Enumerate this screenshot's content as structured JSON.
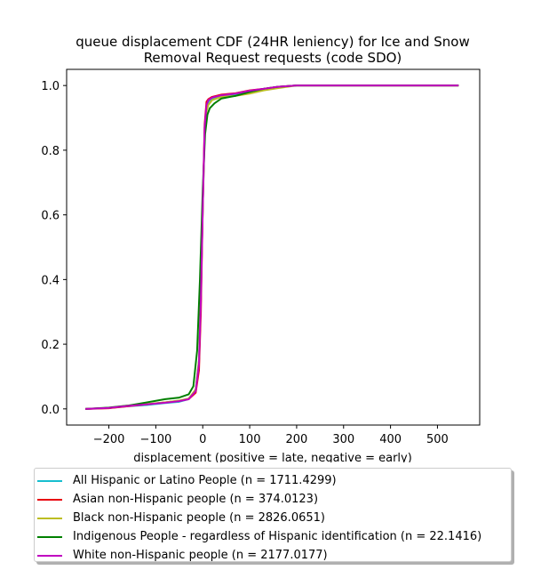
{
  "chart_data": {
    "type": "line",
    "title_lines": [
      "queue displacement CDF (24HR leniency) for Ice and Snow",
      "Removal Request  requests (code SDO)"
    ],
    "xlabel": "displacement (positive = late, negative = early)",
    "ylabel": "",
    "xlim": [
      -290,
      590
    ],
    "ylim": [
      -0.05,
      1.05
    ],
    "xticks": [
      -200,
      -100,
      0,
      100,
      200,
      300,
      400,
      500
    ],
    "xtick_labels": [
      "−200",
      "−100",
      "0",
      "100",
      "200",
      "300",
      "400",
      "500"
    ],
    "yticks": [
      0.0,
      0.2,
      0.4,
      0.6,
      0.8,
      1.0
    ],
    "ytick_labels": [
      "0.0",
      "0.2",
      "0.4",
      "0.6",
      "0.8",
      "1.0"
    ],
    "grid": false,
    "legend_position": "below-plot",
    "series": [
      {
        "name": "All Hispanic or Latino People (n = 1711.4299)",
        "color": "#17becf",
        "x": [
          -250,
          -200,
          -160,
          -120,
          -80,
          -50,
          -30,
          -15,
          -8,
          -4,
          0,
          4,
          8,
          12,
          20,
          40,
          70,
          100,
          130,
          160,
          200,
          300,
          545
        ],
        "y": [
          0.0,
          0.003,
          0.008,
          0.012,
          0.018,
          0.022,
          0.03,
          0.06,
          0.15,
          0.35,
          0.62,
          0.85,
          0.93,
          0.95,
          0.96,
          0.968,
          0.972,
          0.982,
          0.99,
          0.996,
          1.0,
          1.0,
          1.0
        ]
      },
      {
        "name": "Asian non-Hispanic people (n = 374.0123)",
        "color": "#e8000b",
        "x": [
          -250,
          -200,
          -160,
          -120,
          -80,
          -50,
          -30,
          -15,
          -8,
          -4,
          0,
          4,
          8,
          12,
          20,
          40,
          70,
          100,
          130,
          160,
          200,
          300,
          545
        ],
        "y": [
          0.0,
          0.002,
          0.008,
          0.014,
          0.02,
          0.025,
          0.03,
          0.05,
          0.12,
          0.3,
          0.62,
          0.88,
          0.95,
          0.958,
          0.965,
          0.972,
          0.976,
          0.985,
          0.99,
          0.996,
          1.0,
          1.0,
          1.0
        ]
      },
      {
        "name": "Black non-Hispanic people (n = 2826.0651)",
        "color": "#bcbd22",
        "x": [
          -250,
          -200,
          -160,
          -120,
          -80,
          -50,
          -30,
          -15,
          -8,
          -4,
          0,
          4,
          8,
          12,
          20,
          40,
          70,
          100,
          130,
          160,
          200,
          300,
          545
        ],
        "y": [
          0.0,
          0.003,
          0.01,
          0.015,
          0.02,
          0.026,
          0.032,
          0.06,
          0.15,
          0.35,
          0.62,
          0.85,
          0.92,
          0.94,
          0.955,
          0.965,
          0.968,
          0.975,
          0.985,
          0.992,
          1.0,
          1.0,
          1.0
        ]
      },
      {
        "name": "Indigenous People - regardless of Hispanic identification (n = 22.1416)",
        "color": "#008000",
        "x": [
          -250,
          -200,
          -160,
          -120,
          -100,
          -80,
          -50,
          -30,
          -20,
          -12,
          -6,
          0,
          5,
          10,
          15,
          25,
          40,
          70,
          100,
          130,
          160,
          200,
          300,
          545
        ],
        "y": [
          0.0,
          0.004,
          0.01,
          0.02,
          0.025,
          0.03,
          0.035,
          0.045,
          0.07,
          0.18,
          0.4,
          0.68,
          0.85,
          0.91,
          0.93,
          0.945,
          0.96,
          0.968,
          0.98,
          0.99,
          0.996,
          1.0,
          1.0,
          1.0
        ]
      },
      {
        "name": "White non-Hispanic people (n = 2177.0177)",
        "color": "#c000c0",
        "x": [
          -250,
          -200,
          -160,
          -120,
          -80,
          -50,
          -30,
          -15,
          -8,
          -4,
          0,
          4,
          8,
          12,
          20,
          40,
          70,
          100,
          130,
          160,
          200,
          300,
          545
        ],
        "y": [
          0.0,
          0.003,
          0.009,
          0.014,
          0.019,
          0.024,
          0.03,
          0.055,
          0.14,
          0.34,
          0.62,
          0.87,
          0.94,
          0.955,
          0.963,
          0.97,
          0.975,
          0.984,
          0.99,
          0.996,
          1.0,
          1.0,
          1.0
        ]
      }
    ]
  }
}
